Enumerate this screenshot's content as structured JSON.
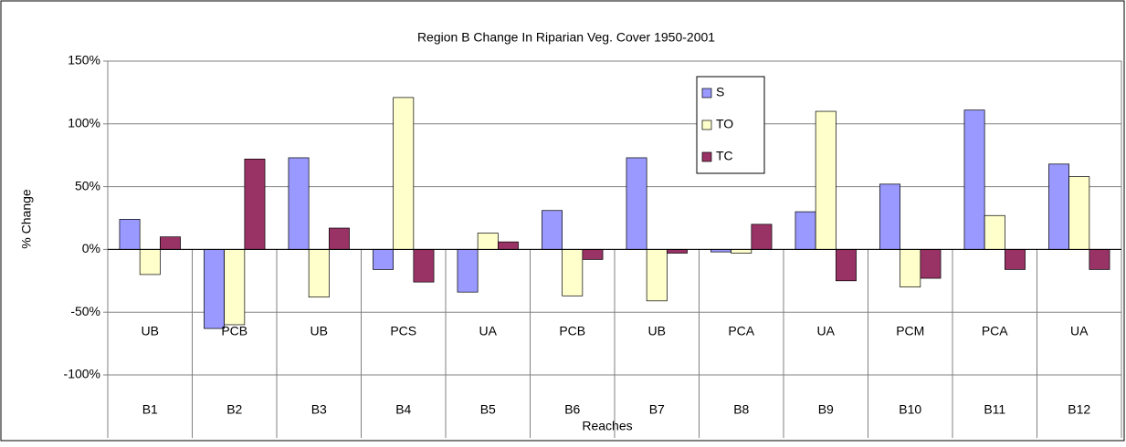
{
  "chart_data": {
    "type": "bar",
    "title": "Region B Change In Riparian Veg. Cover 1950-2001",
    "x_label": "Reaches",
    "y_label": "% Change",
    "categories": [
      "B1",
      "B2",
      "B3",
      "B4",
      "B5",
      "B6",
      "B7",
      "B8",
      "B9",
      "B10",
      "B11",
      "B12"
    ],
    "sub_categories": [
      "UB",
      "PCB",
      "UB",
      "PCS",
      "UA",
      "PCB",
      "UB",
      "PCA",
      "UA",
      "PCM",
      "PCA",
      "UA"
    ],
    "series": [
      {
        "name": "S",
        "color": "#9999ff",
        "values": [
          24,
          -63,
          73,
          -16,
          -34,
          31,
          73,
          -2,
          30,
          52,
          111,
          68
        ]
      },
      {
        "name": "TO",
        "color": "#ffffcc",
        "values": [
          -20,
          -60,
          -38,
          121,
          13,
          -37,
          -41,
          -3,
          110,
          -30,
          27,
          58
        ]
      },
      {
        "name": "TC",
        "color": "#993366",
        "values": [
          10,
          72,
          17,
          -26,
          6,
          -8,
          -3,
          20,
          -25,
          -23,
          -16,
          -16
        ]
      }
    ],
    "ylim": [
      -100,
      150
    ],
    "yticks": [
      {
        "value": -100,
        "label": "-100%"
      },
      {
        "value": -50,
        "label": "-50%"
      },
      {
        "value": 0,
        "label": "0%"
      },
      {
        "value": 50,
        "label": "50%"
      },
      {
        "value": 100,
        "label": "100%"
      },
      {
        "value": 150,
        "label": "150%"
      }
    ],
    "grid": true,
    "legend": "top-right"
  }
}
